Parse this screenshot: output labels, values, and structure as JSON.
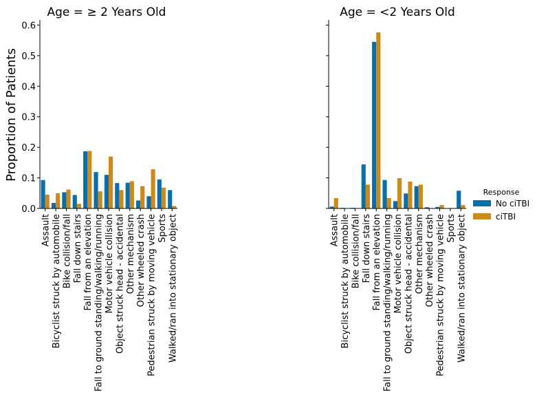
{
  "chart_data": [
    {
      "type": "bar",
      "title": "Age = ≥ 2 Years Old",
      "ylabel": "Proportion of Patients",
      "xlabel": "",
      "ylim": [
        0,
        0.61
      ],
      "yticks": [
        "0.0",
        "0.1",
        "0.2",
        "0.3",
        "0.4",
        "0.5",
        "0.6"
      ],
      "categories": [
        "Assault",
        "Bicyclist struck by automobile",
        "Bike collision/fall",
        "Fall down stairs",
        "Fall from an elevation",
        "Fall to ground standing/walking/running",
        "Motor vehicle collision",
        "Object struck head - accidental",
        "Other mechanism",
        "Other wheeled crash",
        "Pedestrian struck by moving vehicle",
        "Sports",
        "Walked/ran into stationary object"
      ],
      "series": [
        {
          "name": "No ciTBI",
          "values": [
            0.093,
            0.018,
            0.053,
            0.044,
            0.187,
            0.119,
            0.11,
            0.083,
            0.084,
            0.026,
            0.04,
            0.095,
            0.06
          ]
        },
        {
          "name": "ciTBI",
          "values": [
            0.045,
            0.05,
            0.062,
            0.015,
            0.188,
            0.056,
            0.17,
            0.06,
            0.089,
            0.073,
            0.128,
            0.068,
            0.008
          ]
        }
      ]
    },
    {
      "type": "bar",
      "title": "Age = <2 Years Old",
      "ylabel": "",
      "xlabel": "",
      "ylim": [
        0,
        0.61
      ],
      "categories": [
        "Assault",
        "Bicyclist struck by automobile",
        "Bike collision/fall",
        "Fall down stairs",
        "Fall from an elevation",
        "Fall to ground standing/walking/running",
        "Motor vehicle collision",
        "Object struck head - accidental",
        "Other mechanism",
        "Other wheeled crash",
        "Pedestrian struck by moving vehicle",
        "Sports",
        "Walked/ran into stationary object"
      ],
      "series": [
        {
          "name": "No ciTBI",
          "values": [
            0.006,
            0.002,
            0.002,
            0.144,
            0.545,
            0.093,
            0.024,
            0.049,
            0.073,
            0.004,
            0.005,
            0.001,
            0.058
          ]
        },
        {
          "name": "ciTBI",
          "values": [
            0.034,
            0.0,
            0.0,
            0.078,
            0.576,
            0.034,
            0.099,
            0.088,
            0.078,
            0.0,
            0.011,
            0.0,
            0.011
          ]
        }
      ]
    }
  ],
  "legend": {
    "title": "Response",
    "items": [
      {
        "label": "No ciTBI",
        "color": "#0a6fa8"
      },
      {
        "label": "ciTBI",
        "color": "#cb8a1a"
      }
    ]
  }
}
